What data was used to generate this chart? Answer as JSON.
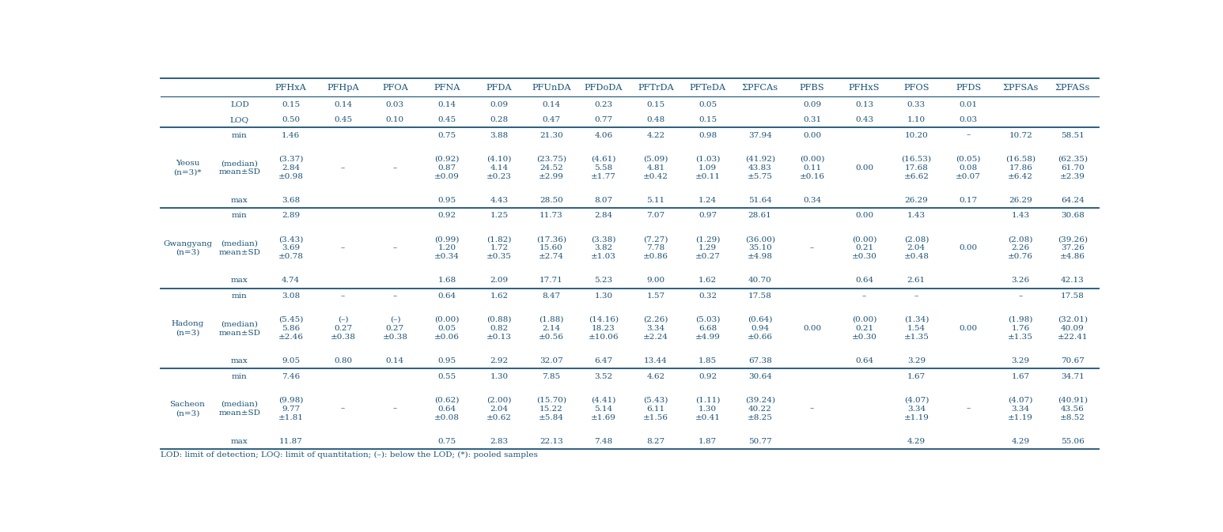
{
  "col_headers": [
    "PFHxA",
    "PFHpA",
    "PFOA",
    "PFNA",
    "PFDA",
    "PFUnDA",
    "PFDoDA",
    "PFTrDA",
    "PFTeDA",
    "ΣPFCAs",
    "PFBS",
    "PFHxS",
    "PFOS",
    "PFDS",
    "ΣPFSAs",
    "ΣPFASs"
  ],
  "lod_row": [
    "0.15",
    "0.14",
    "0.03",
    "0.14",
    "0.09",
    "0.14",
    "0.23",
    "0.15",
    "0.05",
    "",
    "0.09",
    "0.13",
    "0.33",
    "0.01",
    "",
    ""
  ],
  "loq_row": [
    "0.50",
    "0.45",
    "0.10",
    "0.45",
    "0.28",
    "0.47",
    "0.77",
    "0.48",
    "0.15",
    "",
    "0.31",
    "0.43",
    "1.10",
    "0.03",
    "",
    ""
  ],
  "groups": [
    {
      "label": "Yeosu\n(n=3)*",
      "min": [
        "1.46",
        "",
        "",
        "0.75",
        "3.88",
        "21.30",
        "4.06",
        "4.22",
        "0.98",
        "37.94",
        "0.00",
        "",
        "10.20",
        "–",
        "10.72",
        "58.51"
      ],
      "median": [
        "(3.37)\n2.84\n±0.98",
        "–",
        "–",
        "(0.92)\n0.87\n±0.09",
        "(4.10)\n4.14\n±0.23",
        "(23.75)\n24.52\n±2.99",
        "(4.61)\n5.58\n±1.77",
        "(5.09)\n4.81\n±0.42",
        "(1.03)\n1.09\n±0.11",
        "(41.92)\n43.83\n±5.75",
        "(0.00)\n0.11\n±0.16",
        "0.00",
        "(16.53)\n17.68\n±6.62",
        "(0.05)\n0.08\n±0.07",
        "(16.58)\n17.86\n±6.42",
        "(62.35)\n61.70\n±2.39"
      ],
      "max": [
        "3.68",
        "",
        "",
        "0.95",
        "4.43",
        "28.50",
        "8.07",
        "5.11",
        "1.24",
        "51.64",
        "0.34",
        "",
        "26.29",
        "0.17",
        "26.29",
        "64.24"
      ]
    },
    {
      "label": "Gwangyang\n(n=3)",
      "min": [
        "2.89",
        "",
        "",
        "0.92",
        "1.25",
        "11.73",
        "2.84",
        "7.07",
        "0.97",
        "28.61",
        "",
        "0.00",
        "1.43",
        "",
        "1.43",
        "30.68"
      ],
      "median": [
        "(3.43)\n3.69\n±0.78",
        "–",
        "–",
        "(0.99)\n1.20\n±0.34",
        "(1.82)\n1.72\n±0.35",
        "(17.36)\n15.60\n±2.74",
        "(3.38)\n3.82\n±1.03",
        "(7.27)\n7.78\n±0.86",
        "(1.29)\n1.29\n±0.27",
        "(36.00)\n35.10\n±4.98",
        "–",
        "(0.00)\n0.21\n±0.30",
        "(2.08)\n2.04\n±0.48",
        "0.00",
        "(2.08)\n2.26\n±0.76",
        "(39.26)\n37.26\n±4.86"
      ],
      "max": [
        "4.74",
        "",
        "",
        "1.68",
        "2.09",
        "17.71",
        "5.23",
        "9.00",
        "1.62",
        "40.70",
        "",
        "0.64",
        "2.61",
        "",
        "3.26",
        "42.13"
      ]
    },
    {
      "label": "Hadong\n(n=3)",
      "min": [
        "3.08",
        "–",
        "–",
        "0.64",
        "1.62",
        "8.47",
        "1.30",
        "1.57",
        "0.32",
        "17.58",
        "",
        "–",
        "–",
        "",
        "–",
        "17.58"
      ],
      "median": [
        "(5.45)\n5.86\n±2.46",
        "(–)\n0.27\n±0.38",
        "(–)\n0.27\n±0.38",
        "(0.00)\n0.05\n±0.06",
        "(0.88)\n0.82\n±0.13",
        "(1.88)\n2.14\n±0.56",
        "(14.16)\n18.23\n±10.06",
        "(2.26)\n3.34\n±2.24",
        "(5.03)\n6.68\n±4.99",
        "(0.64)\n0.94\n±0.66",
        "0.00",
        "(0.00)\n0.21\n±0.30",
        "(1.34)\n1.54\n±1.35",
        "0.00",
        "(1.98)\n1.76\n±1.35",
        "(32.01)\n40.09\n±22.41"
      ],
      "max": [
        "9.05",
        "0.80",
        "0.14",
        "0.95",
        "2.92",
        "32.07",
        "6.47",
        "13.44",
        "1.85",
        "67.38",
        "",
        "0.64",
        "3.29",
        "",
        "3.29",
        "70.67"
      ]
    },
    {
      "label": "Sacheon\n(n=3)",
      "min": [
        "7.46",
        "",
        "",
        "0.55",
        "1.30",
        "7.85",
        "3.52",
        "4.62",
        "0.92",
        "30.64",
        "",
        "",
        "1.67",
        "",
        "1.67",
        "34.71"
      ],
      "median": [
        "(9.98)\n9.77\n±1.81",
        "–",
        "–",
        "(0.62)\n0.64\n±0.08",
        "(2.00)\n2.04\n±0.62",
        "(15.70)\n15.22\n±5.84",
        "(4.41)\n5.14\n±1.69",
        "(5.43)\n6.11\n±1.56",
        "(1.11)\n1.30\n±0.41",
        "(39.24)\n40.22\n±8.25",
        "–",
        "",
        "(4.07)\n3.34\n±1.19",
        "–",
        "(4.07)\n3.34\n±1.19",
        "(40.91)\n43.56\n±8.52"
      ],
      "max": [
        "11.87",
        "",
        "",
        "0.75",
        "2.83",
        "22.13",
        "7.48",
        "8.27",
        "1.87",
        "50.77",
        "",
        "",
        "4.29",
        "",
        "4.29",
        "55.06"
      ]
    }
  ],
  "footer": "LOD: limit of detection; LOQ: limit of quantitation; (–): below the LOD; (*): pooled samples",
  "text_color": "#1a5276",
  "line_color": "#1a5276",
  "bg_color": "#ffffff",
  "font_size": 7.5,
  "header_font_size": 8.2
}
